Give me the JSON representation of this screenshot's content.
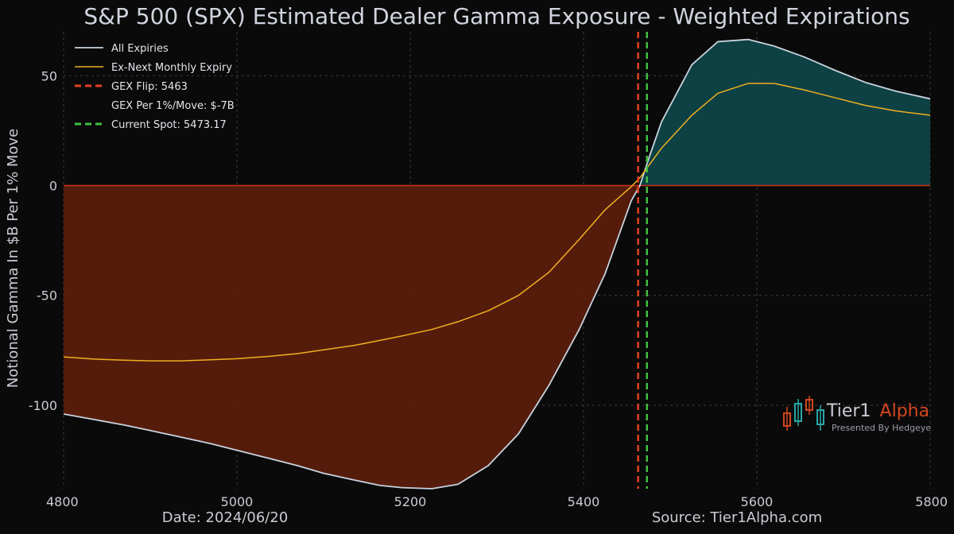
{
  "chart_data": {
    "type": "area",
    "title": "S&P 500 (SPX) Estimated Dealer Gamma Exposure - Weighted Expirations",
    "xlabel": "",
    "ylabel": "Notional Gamma In $B Per 1% Move",
    "xlim": [
      4800,
      5800
    ],
    "ylim": [
      -138,
      70
    ],
    "x_ticks": [
      "4800",
      "5000",
      "5200",
      "5400",
      "5600",
      "5800"
    ],
    "y_ticks": [
      "50",
      "0",
      "-50",
      "-100"
    ],
    "grid": true,
    "legend_position": "top-left",
    "series": [
      {
        "name": "All Expiries",
        "color": "#c8d3de",
        "x": [
          4800,
          4835,
          4870,
          4900,
          4935,
          4970,
          5000,
          5035,
          5070,
          5100,
          5135,
          5165,
          5190,
          5225,
          5255,
          5290,
          5325,
          5360,
          5395,
          5425,
          5455,
          5465,
          5475,
          5490,
          5525,
          5555,
          5590,
          5620,
          5655,
          5690,
          5725,
          5760,
          5800
        ],
        "values": [
          -104,
          -106.5,
          -109,
          -111.5,
          -114.5,
          -117.5,
          -120.5,
          -124,
          -127.5,
          -131,
          -134,
          -136.5,
          -137.5,
          -138,
          -136,
          -127.5,
          -113,
          -91,
          -65.5,
          -40,
          -7,
          0,
          12,
          29,
          55,
          65.5,
          66.5,
          63.5,
          58.5,
          52.5,
          47,
          43,
          39.5
        ]
      },
      {
        "name": "Ex-Next Monthly Expiry",
        "color": "#f0b020",
        "x": [
          4800,
          4835,
          4870,
          4900,
          4935,
          4970,
          5000,
          5035,
          5070,
          5100,
          5135,
          5165,
          5190,
          5225,
          5255,
          5290,
          5325,
          5360,
          5395,
          5425,
          5455,
          5465,
          5475,
          5490,
          5525,
          5555,
          5590,
          5620,
          5655,
          5690,
          5725,
          5760,
          5800
        ],
        "values": [
          -78,
          -79,
          -79.5,
          -79.8,
          -79.8,
          -79.3,
          -78.8,
          -77.8,
          -76.5,
          -74.8,
          -72.8,
          -70.5,
          -68.5,
          -65.5,
          -62,
          -57,
          -50,
          -39.5,
          -24.5,
          -11,
          -0.5,
          3.5,
          9,
          17,
          32,
          42,
          46.5,
          46.5,
          43.5,
          40,
          36.5,
          34,
          32
        ]
      }
    ],
    "annotations": [
      {
        "label": "GEX Flip: 5463",
        "x": 5463,
        "color": "#e04020",
        "style": "dashed"
      },
      {
        "label": "GEX Per 1%/Move: $-7B"
      },
      {
        "label": "Current Spot: 5473.17",
        "x": 5473.17,
        "color": "#40c040",
        "style": "dashed"
      }
    ],
    "fill_colors": {
      "negative": "#5a1e0d",
      "positive": "#0e4447"
    },
    "zero_line_color": "#d03018"
  },
  "footer": {
    "date": "Date: 2024/06/20",
    "source": "Source: Tier1Alpha.com"
  },
  "logo": {
    "name_part1": "Tier1",
    "name_part2": "Alpha",
    "tagline": "Presented By Hedgeye"
  }
}
